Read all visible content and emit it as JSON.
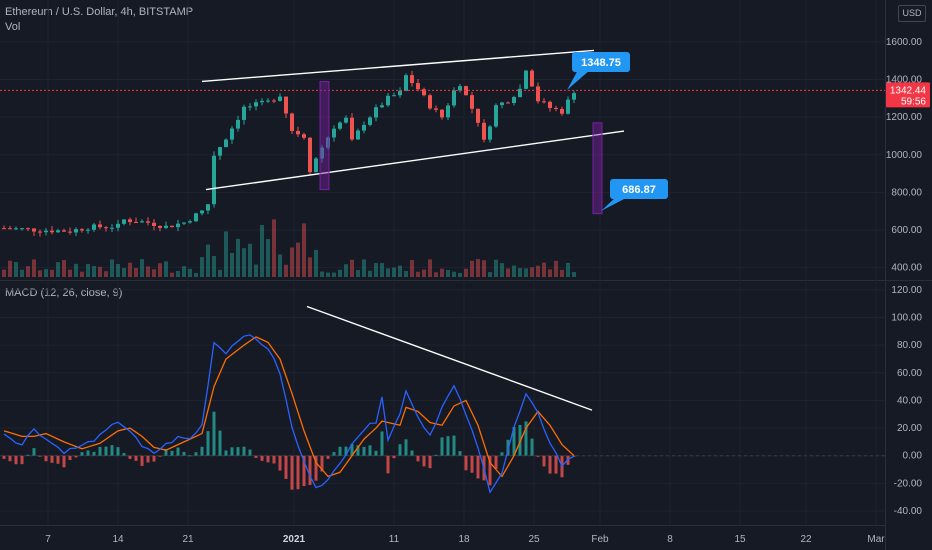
{
  "header": {
    "title": "Ethereum / U.S. Dollar, 4h, BITSTAMP",
    "volume_label": "Vol",
    "macd_label": "MACD (12, 26, close, 9)",
    "currency_button": "USD"
  },
  "price_tag": {
    "value": "1342.44",
    "timer": "59:56",
    "color": "#f23645"
  },
  "callouts": [
    {
      "label": "1348.75"
    },
    {
      "label": "686.87"
    }
  ],
  "colors": {
    "bg": "#161a25",
    "up": "#26a69a",
    "down": "#ef5350",
    "macd": "#2962ff",
    "signal": "#ff6d00",
    "callout": "#2196f3",
    "projection": "#7b1fa2",
    "trendline": "#ffffff"
  },
  "chart_data": [
    {
      "type": "candlestick",
      "title": "Ethereum / U.S. Dollar, 4h, BITSTAMP",
      "x_ticks": [
        "7",
        "14",
        "21",
        "2021",
        "11",
        "18",
        "25",
        "Feb",
        "8",
        "15",
        "22",
        "Mar"
      ],
      "y_ticks": [
        "1600.00",
        "1400.00",
        "1200.00",
        "1000.00",
        "800.00",
        "600.00",
        "400.00"
      ],
      "ylim": [
        345,
        1690
      ],
      "path": [
        [
          0,
          610
        ],
        [
          6,
          600
        ],
        [
          11,
          595
        ],
        [
          14,
          615
        ],
        [
          19,
          620
        ],
        [
          20,
          655
        ],
        [
          24,
          640
        ],
        [
          27,
          618
        ],
        [
          30,
          640
        ],
        [
          33,
          700
        ],
        [
          34,
          740
        ],
        [
          35,
          1000
        ],
        [
          37,
          1090
        ],
        [
          40,
          1250
        ],
        [
          44,
          1280
        ],
        [
          46,
          1320
        ],
        [
          48,
          1130
        ],
        [
          50,
          1100
        ],
        [
          51,
          920
        ],
        [
          53,
          1040
        ],
        [
          55,
          1150
        ],
        [
          57,
          1190
        ],
        [
          58,
          1070
        ],
        [
          60,
          1170
        ],
        [
          62,
          1240
        ],
        [
          64,
          1300
        ],
        [
          66,
          1330
        ],
        [
          67,
          1420
        ],
        [
          69,
          1350
        ],
        [
          71,
          1260
        ],
        [
          73,
          1200
        ],
        [
          75,
          1340
        ],
        [
          76,
          1380
        ],
        [
          79,
          1180
        ],
        [
          80,
          1070
        ],
        [
          82,
          1260
        ],
        [
          84,
          1290
        ],
        [
          86,
          1350
        ],
        [
          87,
          1460
        ],
        [
          89,
          1290
        ],
        [
          91,
          1250
        ],
        [
          93,
          1230
        ],
        [
          95,
          1340
        ]
      ],
      "current_price": 1342.44,
      "annotations": [
        {
          "type": "rising-channel",
          "upper": [
            [
              34,
              1390
            ],
            [
              97,
              1555
            ]
          ],
          "lower": [
            [
              34,
              815
            ],
            [
              97,
              1190
            ]
          ]
        },
        {
          "type": "projection",
          "from": 1170,
          "to": 686.87
        },
        {
          "type": "price-label",
          "value": 1348.75
        },
        {
          "type": "price-label",
          "value": 686.87
        }
      ]
    },
    {
      "type": "bar",
      "name": "Vol",
      "description": "Volume bars under price, taller spikes around 2021 and 11"
    },
    {
      "type": "line",
      "title": "MACD (12, 26, close, 9)",
      "y_ticks": [
        "120.00",
        "100.00",
        "80.00",
        "60.00",
        "40.00",
        "20.00",
        "0.00",
        "-20.00",
        "-40.00"
      ],
      "ylim": [
        -48,
        125
      ],
      "macd": [
        [
          0,
          16
        ],
        [
          3,
          8
        ],
        [
          5,
          20
        ],
        [
          7,
          12
        ],
        [
          10,
          3
        ],
        [
          13,
          7
        ],
        [
          16,
          14
        ],
        [
          19,
          25
        ],
        [
          21,
          18
        ],
        [
          23,
          6
        ],
        [
          25,
          2
        ],
        [
          27,
          8
        ],
        [
          29,
          13
        ],
        [
          31,
          12
        ],
        [
          33,
          22
        ],
        [
          35,
          82
        ],
        [
          37,
          75
        ],
        [
          40,
          88
        ],
        [
          42,
          84
        ],
        [
          44,
          78
        ],
        [
          46,
          60
        ],
        [
          48,
          20
        ],
        [
          50,
          -5
        ],
        [
          52,
          -22
        ],
        [
          54,
          -18
        ],
        [
          56,
          -6
        ],
        [
          58,
          10
        ],
        [
          60,
          19
        ],
        [
          62,
          25
        ],
        [
          63,
          44
        ],
        [
          64,
          12
        ],
        [
          66,
          30
        ],
        [
          67,
          48
        ],
        [
          69,
          28
        ],
        [
          71,
          15
        ],
        [
          73,
          35
        ],
        [
          75,
          50
        ],
        [
          77,
          30
        ],
        [
          79,
          5
        ],
        [
          81,
          -25
        ],
        [
          83,
          -12
        ],
        [
          85,
          20
        ],
        [
          87,
          44
        ],
        [
          89,
          30
        ],
        [
          91,
          10
        ],
        [
          93,
          -7
        ],
        [
          95,
          0
        ]
      ],
      "signal": [
        [
          0,
          18
        ],
        [
          3,
          14
        ],
        [
          5,
          14
        ],
        [
          7,
          16
        ],
        [
          10,
          10
        ],
        [
          13,
          5
        ],
        [
          16,
          9
        ],
        [
          19,
          18
        ],
        [
          21,
          20
        ],
        [
          23,
          14
        ],
        [
          25,
          6
        ],
        [
          27,
          4
        ],
        [
          29,
          8
        ],
        [
          31,
          12
        ],
        [
          33,
          16
        ],
        [
          35,
          50
        ],
        [
          37,
          70
        ],
        [
          40,
          80
        ],
        [
          42,
          86
        ],
        [
          44,
          82
        ],
        [
          46,
          70
        ],
        [
          48,
          45
        ],
        [
          50,
          18
        ],
        [
          52,
          -5
        ],
        [
          54,
          -15
        ],
        [
          56,
          -12
        ],
        [
          58,
          0
        ],
        [
          60,
          12
        ],
        [
          62,
          20
        ],
        [
          63,
          25
        ],
        [
          64,
          24
        ],
        [
          66,
          22
        ],
        [
          67,
          35
        ],
        [
          69,
          32
        ],
        [
          71,
          24
        ],
        [
          73,
          22
        ],
        [
          75,
          36
        ],
        [
          77,
          40
        ],
        [
          79,
          22
        ],
        [
          81,
          -5
        ],
        [
          83,
          -15
        ],
        [
          85,
          0
        ],
        [
          87,
          20
        ],
        [
          89,
          32
        ],
        [
          91,
          22
        ],
        [
          93,
          8
        ],
        [
          95,
          0
        ]
      ],
      "annotations": [
        {
          "type": "trendline",
          "points": [
            [
              33,
              108
            ],
            [
              97,
              33
            ]
          ]
        }
      ]
    }
  ]
}
